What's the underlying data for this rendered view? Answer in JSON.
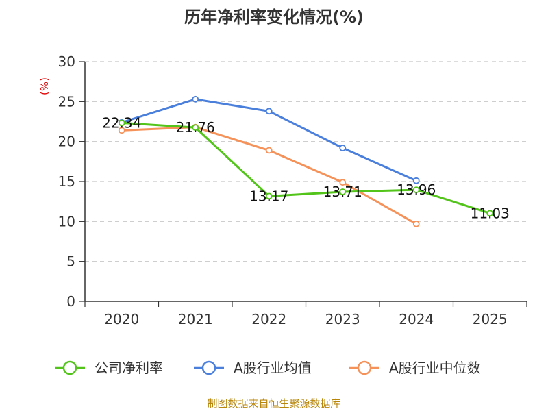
{
  "chart_data": {
    "type": "line",
    "title": "历年净利率变化情况(%)",
    "ylabel": "(%)",
    "xlabel": "",
    "categories": [
      "2020",
      "2021",
      "2022",
      "2023",
      "2024",
      "2025"
    ],
    "ylim": [
      0,
      30
    ],
    "yticks": [
      0,
      5,
      10,
      15,
      20,
      25,
      30
    ],
    "grid": true,
    "legend_position": "bottom",
    "series": [
      {
        "name": "公司净利率",
        "color": "#52c41a",
        "values": [
          22.34,
          21.76,
          13.17,
          13.71,
          13.96,
          11.03
        ],
        "labels": [
          "22.34",
          "21.76",
          "13.17",
          "13.71",
          "13.96",
          "11.03"
        ]
      },
      {
        "name": "A股行业均值",
        "color": "#4a7fdc",
        "values": [
          22.4,
          25.3,
          23.8,
          19.2,
          15.1,
          null
        ]
      },
      {
        "name": "A股行业中位数",
        "color": "#f5925a",
        "values": [
          21.4,
          21.8,
          18.9,
          14.9,
          9.7,
          null
        ]
      }
    ],
    "source": "制图数据来自恒生聚源数据库"
  }
}
